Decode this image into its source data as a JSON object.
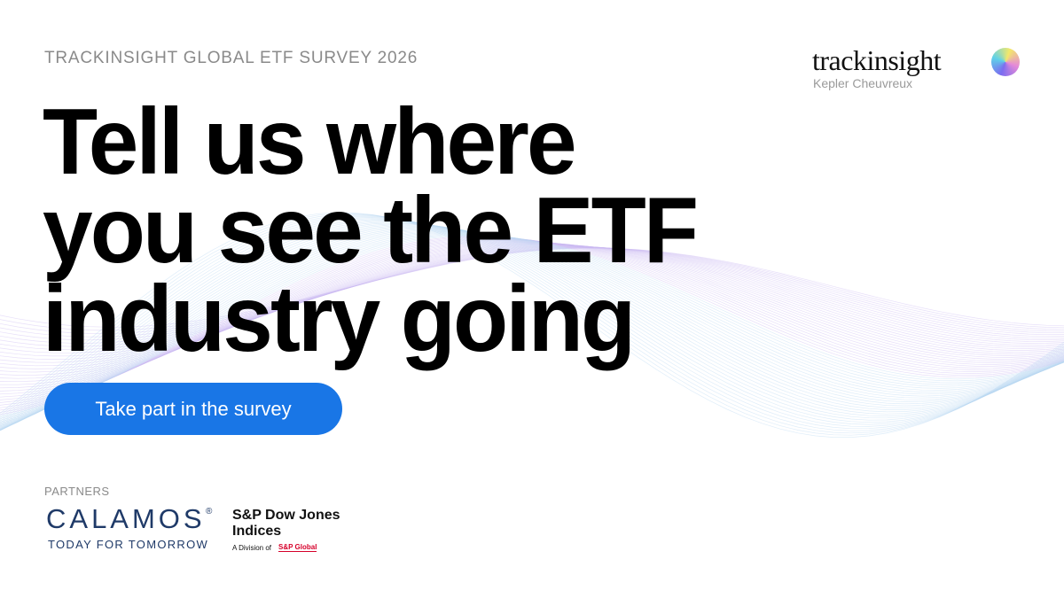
{
  "header": {
    "eyebrow": "TRACKINSIGHT GLOBAL ETF SURVEY 2026",
    "headline": [
      "Tell us where",
      "you see the ETF",
      "industry going"
    ]
  },
  "button": {
    "label": "Take part in the survey"
  },
  "brand": {
    "name": "trackinsight",
    "tagline": "Kepler Cheuvreux"
  },
  "partners": {
    "label": "PARTNERS",
    "calamos": {
      "name": "CALAMOS",
      "mark": "®",
      "tagline": "TODAY FOR TOMORROW"
    },
    "spdji": {
      "line1": "S&P Dow Jones",
      "line2": "Indices",
      "division": "A Division of",
      "parent": "S&P Global"
    }
  }
}
